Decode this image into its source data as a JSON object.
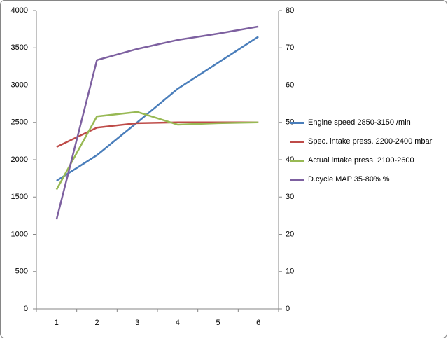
{
  "chart_data": {
    "type": "line",
    "categories": [
      "1",
      "2",
      "3",
      "4",
      "5",
      "6"
    ],
    "series": [
      {
        "name": "Engine speed 2850-3150  /min",
        "color": "#4a7ebb",
        "values": [
          1718,
          2060,
          2500,
          2950,
          3300,
          3650
        ]
      },
      {
        "name": "Spec. intake press. 2200-2400 mbar",
        "color": "#be4b48",
        "values": [
          2170,
          2430,
          2490,
          2500,
          2500,
          2500
        ]
      },
      {
        "name": "Actual intake press. 2100-2600",
        "color": "#98b954",
        "values": [
          1600,
          2580,
          2640,
          2470,
          2490,
          2500
        ]
      },
      {
        "name": "D.cycle MAP 35-80% %",
        "color": "#7d60a0",
        "axis": "y2",
        "values": [
          24,
          66.7,
          69.7,
          72.1,
          73.8,
          75.7
        ]
      }
    ],
    "ylim": [
      0,
      4000
    ],
    "yticks": [
      0,
      500,
      1000,
      1500,
      2000,
      2500,
      3000,
      3500,
      4000
    ],
    "y2lim": [
      0,
      80
    ],
    "y2ticks": [
      0,
      10,
      20,
      30,
      40,
      50,
      60,
      70,
      80
    ],
    "grid": false
  }
}
